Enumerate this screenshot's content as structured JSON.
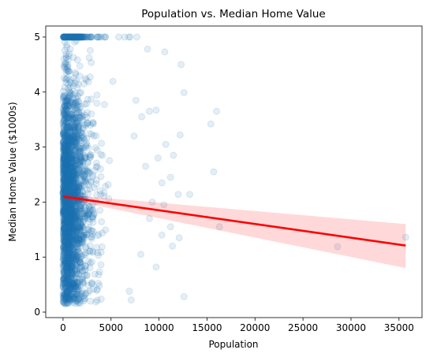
{
  "chart_data": {
    "type": "scatter",
    "title": "Population vs. Median Home Value",
    "xlabel": "Population",
    "ylabel": "Median Home Value ($1000s)",
    "xlim": [
      -1800,
      37400
    ],
    "ylim": [
      -0.1,
      5.2
    ],
    "x_ticks": [
      0,
      5000,
      10000,
      15000,
      20000,
      25000,
      30000,
      35000
    ],
    "y_ticks": [
      0,
      1,
      2,
      3,
      4,
      5
    ],
    "grid": false,
    "legend": "none",
    "point_color": "#1f77b4",
    "point_opacity": 0.12,
    "outlier_points": [
      {
        "x": 5800,
        "y": 5.0
      },
      {
        "x": 6400,
        "y": 5.0
      },
      {
        "x": 7000,
        "y": 5.0
      },
      {
        "x": 7700,
        "y": 5.0
      },
      {
        "x": 8800,
        "y": 4.78
      },
      {
        "x": 10600,
        "y": 4.73
      },
      {
        "x": 12300,
        "y": 4.5
      },
      {
        "x": 12600,
        "y": 3.99
      },
      {
        "x": 7600,
        "y": 3.85
      },
      {
        "x": 9700,
        "y": 3.67
      },
      {
        "x": 9000,
        "y": 3.65
      },
      {
        "x": 8200,
        "y": 3.55
      },
      {
        "x": 16000,
        "y": 3.65
      },
      {
        "x": 15400,
        "y": 3.42
      },
      {
        "x": 12200,
        "y": 3.22
      },
      {
        "x": 10700,
        "y": 3.05
      },
      {
        "x": 11500,
        "y": 2.85
      },
      {
        "x": 15700,
        "y": 2.55
      },
      {
        "x": 11200,
        "y": 2.45
      },
      {
        "x": 10300,
        "y": 2.35
      },
      {
        "x": 12000,
        "y": 2.14
      },
      {
        "x": 13200,
        "y": 2.14
      },
      {
        "x": 9300,
        "y": 2.0
      },
      {
        "x": 10500,
        "y": 1.95
      },
      {
        "x": 9000,
        "y": 1.7
      },
      {
        "x": 11200,
        "y": 1.55
      },
      {
        "x": 16300,
        "y": 1.55
      },
      {
        "x": 10300,
        "y": 1.4
      },
      {
        "x": 12100,
        "y": 1.35
      },
      {
        "x": 11400,
        "y": 1.2
      },
      {
        "x": 9700,
        "y": 0.82
      },
      {
        "x": 12600,
        "y": 0.28
      },
      {
        "x": 28600,
        "y": 1.19
      },
      {
        "x": 35700,
        "y": 1.36
      },
      {
        "x": 7100,
        "y": 0.22
      },
      {
        "x": 6900,
        "y": 0.38
      },
      {
        "x": 8100,
        "y": 1.05
      },
      {
        "x": 8600,
        "y": 2.65
      },
      {
        "x": 7400,
        "y": 3.2
      },
      {
        "x": 9900,
        "y": 2.8
      }
    ],
    "regression": {
      "x": [
        0,
        35700
      ],
      "y": [
        2.1,
        1.21
      ],
      "ci_lower": [
        2.06,
        0.8
      ],
      "ci_upper": [
        2.14,
        1.6
      ],
      "color": "#ff0000",
      "band_color": "#ff0000",
      "band_opacity": 0.15
    }
  }
}
